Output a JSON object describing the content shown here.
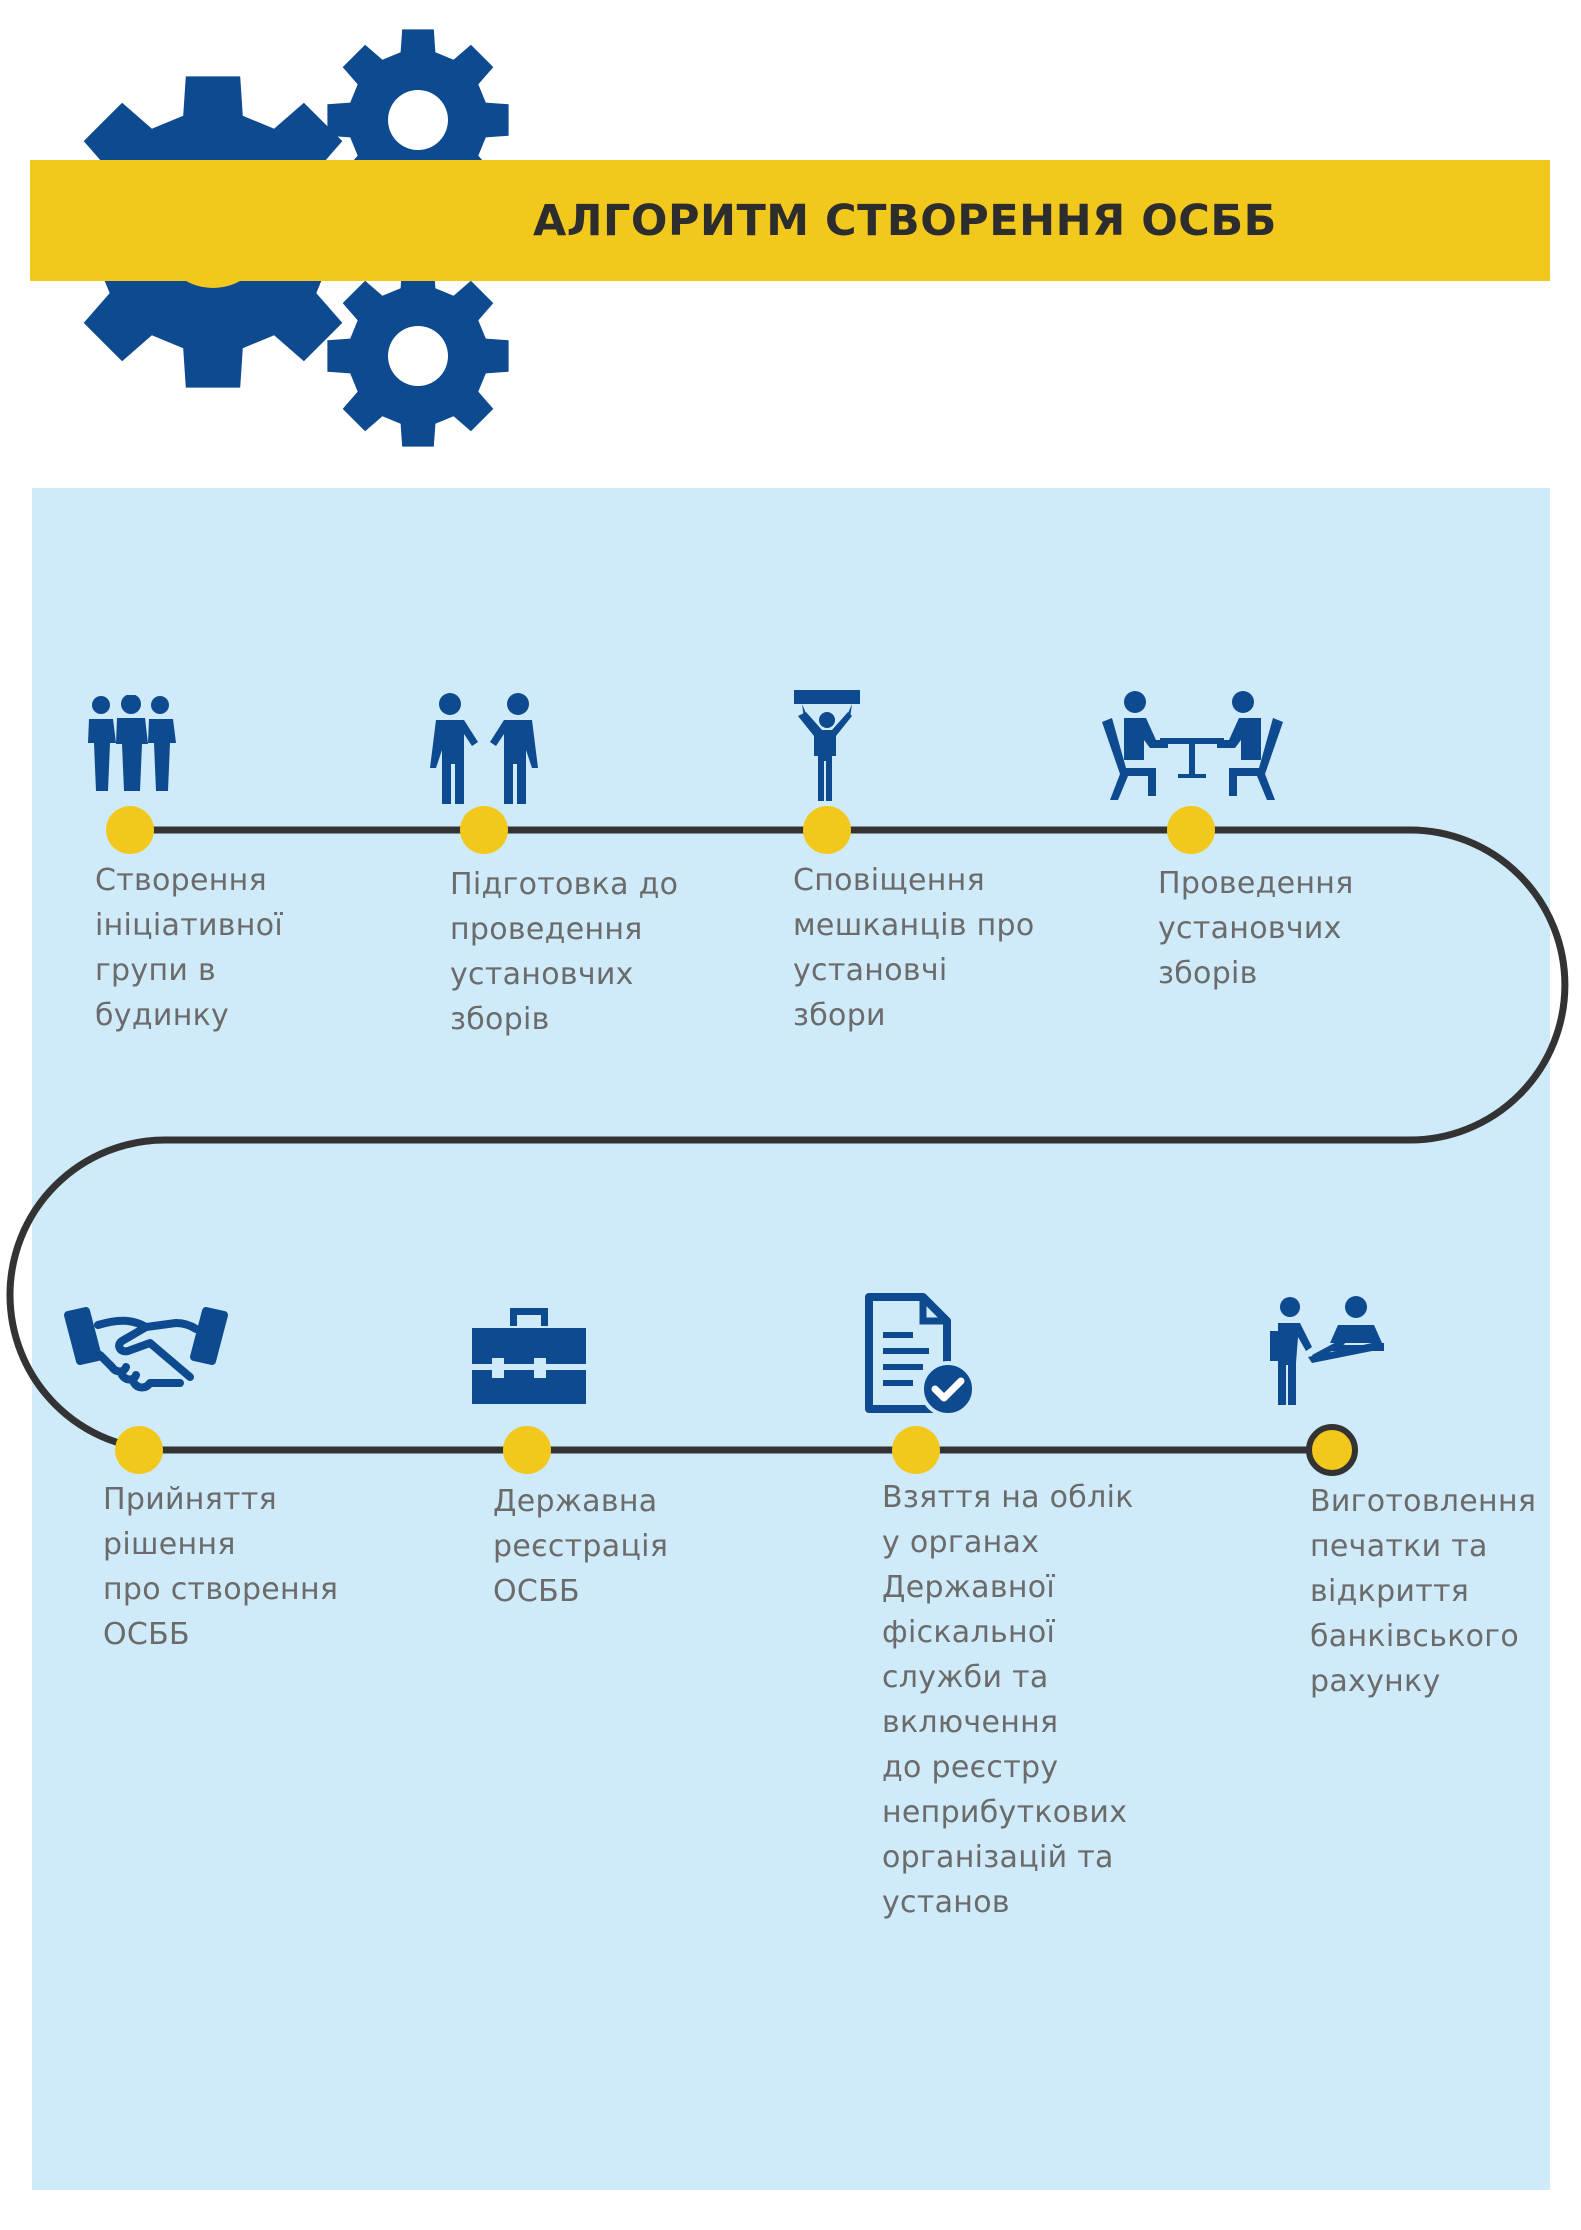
{
  "header": {
    "title": "АЛГОРИТМ СТВОРЕННЯ ОСББ"
  },
  "colors": {
    "navy": "#0d4a8f",
    "yellow": "#f2c81c",
    "panel": "#cfeaf8",
    "track": "#333333",
    "text": "#6b6b6b"
  },
  "steps": [
    {
      "label": "Створення\nініціативної\nгрупи в\nбудинку",
      "icon": "group-people-icon"
    },
    {
      "label": "Підготовка до\nпроведення\nустановчих\nзборів",
      "icon": "two-people-talking-icon"
    },
    {
      "label": "Сповіщення\nмешканців про\nустановчі\nзбори",
      "icon": "person-holding-banner-icon"
    },
    {
      "label": "Проведення\nустановчих\nзборів",
      "icon": "meeting-at-table-icon"
    },
    {
      "label": "Прийняття\nрішення\nпро створення\nОСББ",
      "icon": "handshake-icon"
    },
    {
      "label": "Державна\nреєстрація\nОСББ",
      "icon": "briefcase-icon"
    },
    {
      "label": "Взяття на облік\nу органах\nДержавної\nфіскальної\nслужби та\nвключення\nдо реєстру\nнеприбуткових\nорганізацій та\nустанов",
      "icon": "document-check-icon"
    },
    {
      "label": "Виготовлення\nпечатки та\nвідкриття\nбанківського\nрахунку",
      "icon": "people-at-desk-icon"
    }
  ]
}
